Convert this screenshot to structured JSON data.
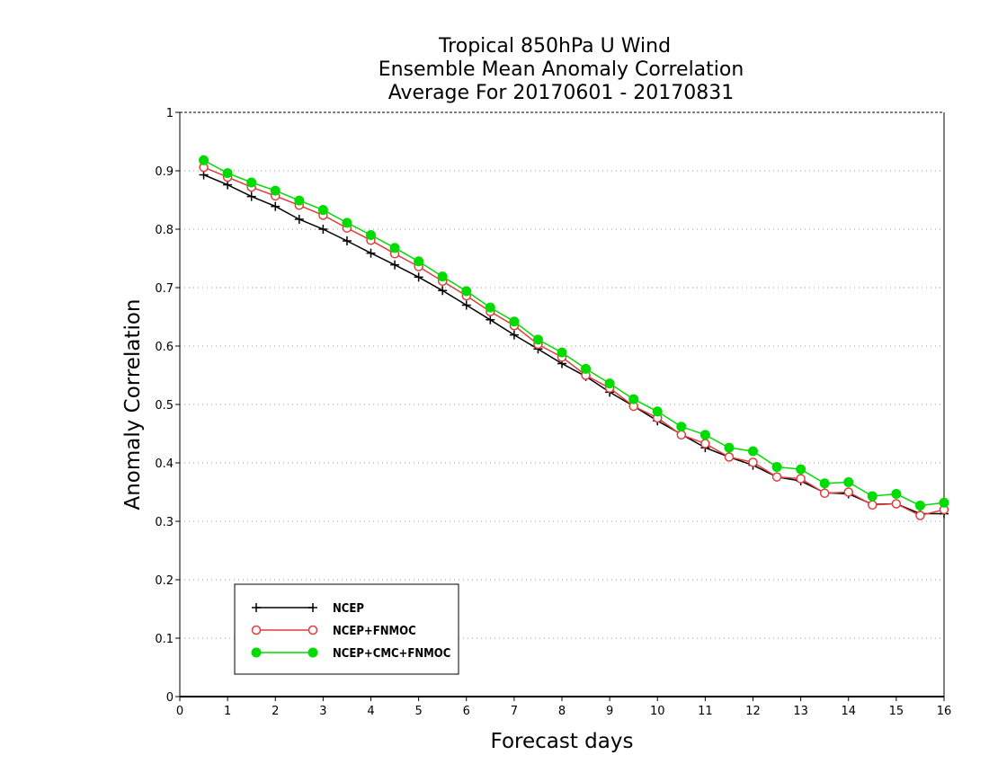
{
  "chart_data": {
    "type": "line",
    "title": [
      "Tropical 850hPa U Wind",
      "Ensemble Mean Anomaly Correlation",
      "Average For 20170601 - 20170831"
    ],
    "xlabel": "Forecast days",
    "ylabel": "Anomaly Correlation",
    "xlim": [
      0,
      16
    ],
    "ylim": [
      0,
      1
    ],
    "xticks": [
      "0",
      "1",
      "2",
      "3",
      "4",
      "5",
      "6",
      "7",
      "8",
      "9",
      "10",
      "11",
      "12",
      "13",
      "14",
      "15",
      "16"
    ],
    "yticks": [
      "0",
      "0.1",
      "0.2",
      "0.3",
      "0.4",
      "0.5",
      "0.6",
      "0.7",
      "0.8",
      "0.9",
      "1"
    ],
    "grid": "horizontal dotted",
    "legend_position": "bottom-left",
    "x": [
      0.5,
      1,
      1.5,
      2,
      2.5,
      3,
      3.5,
      4,
      4.5,
      5,
      5.5,
      6,
      6.5,
      7,
      7.5,
      8,
      8.5,
      9,
      9.5,
      10,
      10.5,
      11,
      11.5,
      12,
      12.5,
      13,
      13.5,
      14,
      14.5,
      15,
      15.5,
      16
    ],
    "series": [
      {
        "name": "NCEP",
        "marker": "plus",
        "color": "#000000",
        "values": [
          0.893,
          0.876,
          0.856,
          0.839,
          0.817,
          0.8,
          0.78,
          0.759,
          0.739,
          0.718,
          0.695,
          0.67,
          0.645,
          0.619,
          0.595,
          0.57,
          0.548,
          0.521,
          0.497,
          0.472,
          0.449,
          0.426,
          0.41,
          0.396,
          0.376,
          0.369,
          0.349,
          0.347,
          0.329,
          0.33,
          0.313,
          0.313
        ]
      },
      {
        "name": "NCEP+FNMOC",
        "marker": "open-circle",
        "color": "#e03c3c",
        "values": [
          0.906,
          0.889,
          0.872,
          0.857,
          0.841,
          0.824,
          0.802,
          0.781,
          0.758,
          0.736,
          0.711,
          0.686,
          0.659,
          0.635,
          0.603,
          0.581,
          0.55,
          0.528,
          0.497,
          0.477,
          0.448,
          0.433,
          0.41,
          0.401,
          0.376,
          0.373,
          0.348,
          0.35,
          0.328,
          0.33,
          0.31,
          0.32
        ]
      },
      {
        "name": "NCEP+CMC+FNMOC",
        "marker": "filled-circle",
        "color": "#00dc00",
        "values": [
          0.918,
          0.896,
          0.88,
          0.866,
          0.849,
          0.833,
          0.811,
          0.79,
          0.768,
          0.745,
          0.719,
          0.694,
          0.666,
          0.642,
          0.611,
          0.589,
          0.561,
          0.536,
          0.509,
          0.488,
          0.462,
          0.448,
          0.426,
          0.42,
          0.393,
          0.389,
          0.365,
          0.367,
          0.343,
          0.347,
          0.327,
          0.332
        ]
      }
    ]
  }
}
